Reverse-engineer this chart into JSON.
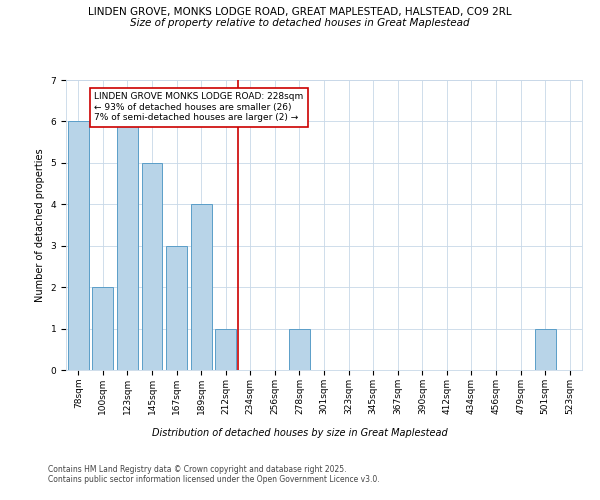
{
  "title_line1": "LINDEN GROVE, MONKS LODGE ROAD, GREAT MAPLESTEAD, HALSTEAD, CO9 2RL",
  "title_line2": "Size of property relative to detached houses in Great Maplestead",
  "xlabel": "Distribution of detached houses by size in Great Maplestead",
  "ylabel": "Number of detached properties",
  "categories": [
    "78sqm",
    "100sqm",
    "123sqm",
    "145sqm",
    "167sqm",
    "189sqm",
    "212sqm",
    "234sqm",
    "256sqm",
    "278sqm",
    "301sqm",
    "323sqm",
    "345sqm",
    "367sqm",
    "390sqm",
    "412sqm",
    "434sqm",
    "456sqm",
    "479sqm",
    "501sqm",
    "523sqm"
  ],
  "values": [
    6,
    2,
    6,
    5,
    3,
    4,
    1,
    0,
    0,
    1,
    0,
    0,
    0,
    0,
    0,
    0,
    0,
    0,
    0,
    1,
    0
  ],
  "bar_color": "#b8d4e8",
  "bar_edge_color": "#5a9ec8",
  "vline_x": 6.5,
  "vline_color": "#cc0000",
  "annotation_text": "LINDEN GROVE MONKS LODGE ROAD: 228sqm\n← 93% of detached houses are smaller (26)\n7% of semi-detached houses are larger (2) →",
  "annotation_box_color": "#cc0000",
  "ylim": [
    0,
    7
  ],
  "yticks": [
    0,
    1,
    2,
    3,
    4,
    5,
    6,
    7
  ],
  "footer_text": "Contains HM Land Registry data © Crown copyright and database right 2025.\nContains public sector information licensed under the Open Government Licence v3.0.",
  "bg_color": "#ffffff",
  "grid_color": "#c8d8e8",
  "title_fontsize": 7.5,
  "subtitle_fontsize": 7.5,
  "axis_label_fontsize": 7,
  "tick_fontsize": 6.5,
  "annotation_fontsize": 6.5,
  "footer_fontsize": 5.5
}
